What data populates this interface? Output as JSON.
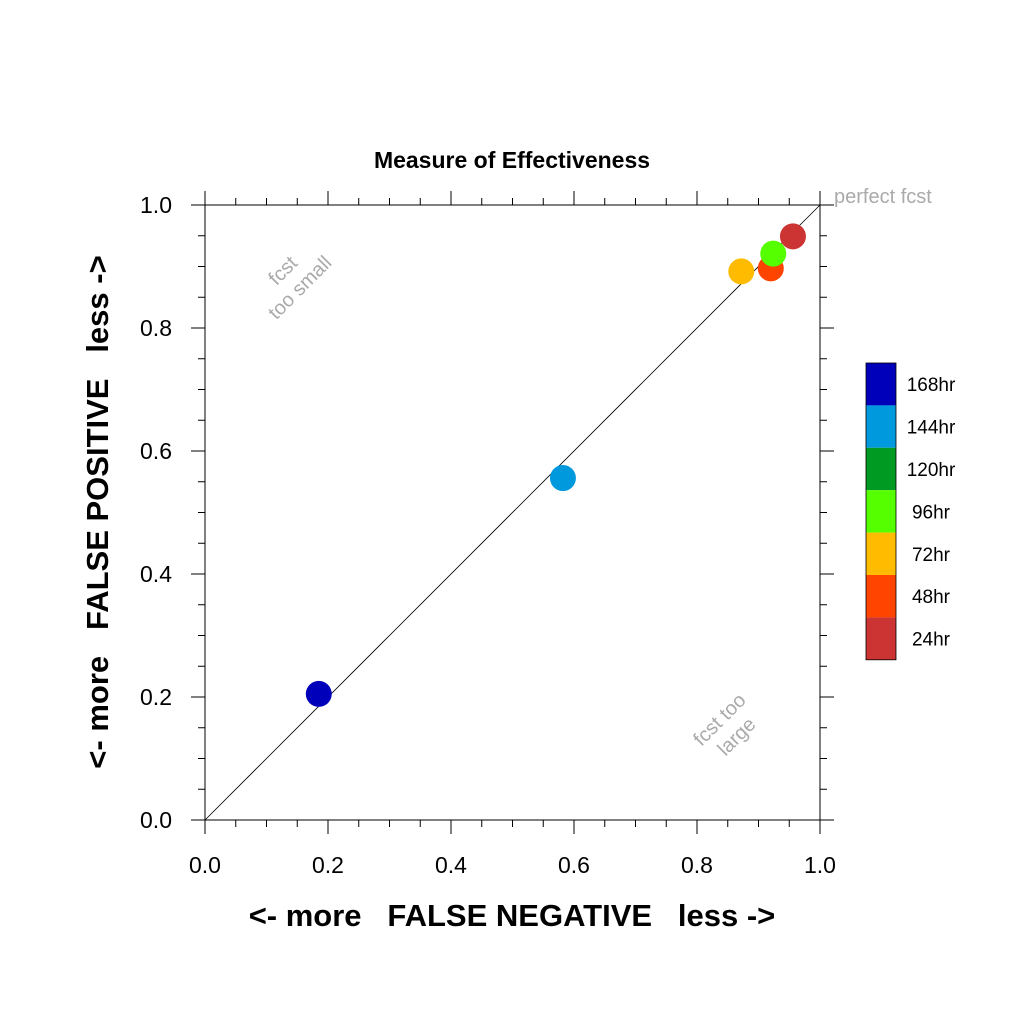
{
  "chart_data": {
    "type": "scatter",
    "title": "Measure of Effectiveness",
    "xlabel": "<- more   FALSE NEGATIVE   less ->",
    "ylabel": "<- more   FALSE POSITIVE   less ->",
    "xlim": [
      0,
      1
    ],
    "ylim": [
      0,
      1
    ],
    "xticks": [
      "0.0",
      "0.2",
      "0.4",
      "0.6",
      "0.8",
      "1.0"
    ],
    "yticks": [
      "0.0",
      "0.2",
      "0.4",
      "0.6",
      "0.8",
      "1.0"
    ],
    "grid": false,
    "legend_position": "right",
    "reference_line": {
      "from": [
        0,
        0
      ],
      "to": [
        1,
        1
      ]
    },
    "annotations": [
      {
        "text": "perfect fcst",
        "x": 1.0,
        "y": 1.0
      },
      {
        "lines": [
          "fcst",
          "too small"
        ],
        "x": 0.14,
        "y": 0.88
      },
      {
        "lines": [
          "fcst too",
          "large"
        ],
        "x": 0.85,
        "y": 0.15
      }
    ],
    "series": [
      {
        "name": "168hr",
        "color": "#0000bb",
        "x": 0.185,
        "y": 0.205
      },
      {
        "name": "144hr",
        "color": "#0099dd",
        "x": 0.582,
        "y": 0.556
      },
      {
        "name": "120hr",
        "color": "#009922",
        "x": null,
        "y": null
      },
      {
        "name": "96hr",
        "color": "#55ff00",
        "x": 0.924,
        "y": 0.921
      },
      {
        "name": "72hr",
        "color": "#ffbb00",
        "x": 0.872,
        "y": 0.892
      },
      {
        "name": "48hr",
        "color": "#ff4400",
        "x": 0.92,
        "y": 0.897
      },
      {
        "name": "24hr",
        "color": "#cc3333",
        "x": 0.956,
        "y": 0.949
      }
    ]
  }
}
